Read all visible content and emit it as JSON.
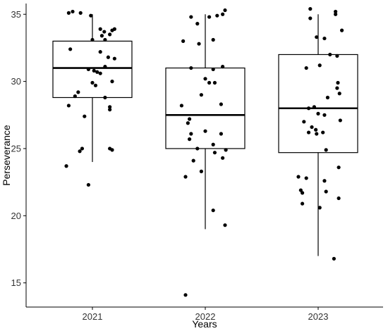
{
  "chart_data": {
    "type": "box",
    "title": "",
    "xlabel": "Years",
    "ylabel": "Perseverance",
    "categories": [
      "2021",
      "2022",
      "2023"
    ],
    "ylim": [
      13.2,
      35.8
    ],
    "yticks": [
      15,
      20,
      25,
      30,
      35
    ],
    "grid": false,
    "legend": "none",
    "colors": {
      "box_fill": "#ffffff",
      "box_stroke": "#000000",
      "points": "#000000"
    },
    "boxes": [
      {
        "category": "2021",
        "whisker_low": 24.0,
        "q1": 28.8,
        "median": 31.0,
        "q3": 33.0,
        "whisker_high": 35.0
      },
      {
        "category": "2022",
        "whisker_low": 19.0,
        "q1": 25.0,
        "median": 27.5,
        "q3": 31.0,
        "whisker_high": 35.0
      },
      {
        "category": "2023",
        "whisker_low": 17.0,
        "q1": 24.7,
        "median": 28.0,
        "q3": 32.0,
        "whisker_high": 35.0
      }
    ],
    "points": [
      {
        "category": "2021",
        "jitter": -0.3,
        "y": 35.1
      },
      {
        "category": "2021",
        "jitter": -0.25,
        "y": 35.2
      },
      {
        "category": "2021",
        "jitter": -0.15,
        "y": 35.1
      },
      {
        "category": "2021",
        "jitter": -0.02,
        "y": 34.9
      },
      {
        "category": "2021",
        "jitter": 0.1,
        "y": 33.9
      },
      {
        "category": "2021",
        "jitter": 0.15,
        "y": 33.7
      },
      {
        "category": "2021",
        "jitter": 0.25,
        "y": 33.8
      },
      {
        "category": "2021",
        "jitter": 0.28,
        "y": 33.9
      },
      {
        "category": "2021",
        "jitter": 0.22,
        "y": 33.5
      },
      {
        "category": "2021",
        "jitter": 0.12,
        "y": 33.4
      },
      {
        "category": "2021",
        "jitter": 0.0,
        "y": 33.1
      },
      {
        "category": "2021",
        "jitter": 0.16,
        "y": 33.1
      },
      {
        "category": "2021",
        "jitter": -0.28,
        "y": 32.4
      },
      {
        "category": "2021",
        "jitter": 0.1,
        "y": 32.2
      },
      {
        "category": "2021",
        "jitter": 0.2,
        "y": 31.8
      },
      {
        "category": "2021",
        "jitter": 0.28,
        "y": 31.7
      },
      {
        "category": "2021",
        "jitter": 0.16,
        "y": 31.1
      },
      {
        "category": "2021",
        "jitter": -0.05,
        "y": 30.9
      },
      {
        "category": "2021",
        "jitter": 0.02,
        "y": 30.8
      },
      {
        "category": "2021",
        "jitter": 0.06,
        "y": 30.7
      },
      {
        "category": "2021",
        "jitter": 0.1,
        "y": 30.6
      },
      {
        "category": "2021",
        "jitter": 0.25,
        "y": 30.0
      },
      {
        "category": "2021",
        "jitter": 0.04,
        "y": 29.7
      },
      {
        "category": "2021",
        "jitter": 0.0,
        "y": 29.9
      },
      {
        "category": "2021",
        "jitter": -0.18,
        "y": 29.2
      },
      {
        "category": "2021",
        "jitter": -0.22,
        "y": 28.9
      },
      {
        "category": "2021",
        "jitter": 0.16,
        "y": 28.8
      },
      {
        "category": "2021",
        "jitter": -0.3,
        "y": 28.2
      },
      {
        "category": "2021",
        "jitter": 0.22,
        "y": 28.1
      },
      {
        "category": "2021",
        "jitter": 0.22,
        "y": 27.9
      },
      {
        "category": "2021",
        "jitter": -0.1,
        "y": 27.4
      },
      {
        "category": "2021",
        "jitter": -0.13,
        "y": 25.0
      },
      {
        "category": "2021",
        "jitter": -0.16,
        "y": 24.8
      },
      {
        "category": "2021",
        "jitter": 0.22,
        "y": 25.0
      },
      {
        "category": "2021",
        "jitter": 0.25,
        "y": 24.9
      },
      {
        "category": "2021",
        "jitter": -0.33,
        "y": 23.7
      },
      {
        "category": "2021",
        "jitter": -0.05,
        "y": 22.3
      },
      {
        "category": "2022",
        "jitter": 0.25,
        "y": 35.3
      },
      {
        "category": "2022",
        "jitter": 0.22,
        "y": 35.0
      },
      {
        "category": "2022",
        "jitter": 0.15,
        "y": 34.9
      },
      {
        "category": "2022",
        "jitter": 0.05,
        "y": 34.8
      },
      {
        "category": "2022",
        "jitter": -0.18,
        "y": 34.8
      },
      {
        "category": "2022",
        "jitter": -0.1,
        "y": 34.3
      },
      {
        "category": "2022",
        "jitter": -0.28,
        "y": 33.0
      },
      {
        "category": "2022",
        "jitter": 0.1,
        "y": 33.1
      },
      {
        "category": "2022",
        "jitter": -0.08,
        "y": 32.8
      },
      {
        "category": "2022",
        "jitter": -0.18,
        "y": 31.0
      },
      {
        "category": "2022",
        "jitter": 0.22,
        "y": 31.1
      },
      {
        "category": "2022",
        "jitter": 0.1,
        "y": 30.9
      },
      {
        "category": "2022",
        "jitter": 0.0,
        "y": 30.2
      },
      {
        "category": "2022",
        "jitter": 0.05,
        "y": 29.9
      },
      {
        "category": "2022",
        "jitter": 0.12,
        "y": 29.9
      },
      {
        "category": "2022",
        "jitter": 0.2,
        "y": 28.3
      },
      {
        "category": "2022",
        "jitter": -0.05,
        "y": 29.0
      },
      {
        "category": "2022",
        "jitter": -0.3,
        "y": 28.2
      },
      {
        "category": "2022",
        "jitter": -0.2,
        "y": 27.2
      },
      {
        "category": "2022",
        "jitter": -0.22,
        "y": 26.9
      },
      {
        "category": "2022",
        "jitter": 0.0,
        "y": 26.3
      },
      {
        "category": "2022",
        "jitter": -0.18,
        "y": 26.1
      },
      {
        "category": "2022",
        "jitter": 0.2,
        "y": 26.1
      },
      {
        "category": "2022",
        "jitter": -0.2,
        "y": 25.7
      },
      {
        "category": "2022",
        "jitter": 0.1,
        "y": 25.3
      },
      {
        "category": "2022",
        "jitter": -0.1,
        "y": 25.0
      },
      {
        "category": "2022",
        "jitter": 0.12,
        "y": 24.7
      },
      {
        "category": "2022",
        "jitter": 0.26,
        "y": 24.9
      },
      {
        "category": "2022",
        "jitter": 0.22,
        "y": 24.3
      },
      {
        "category": "2022",
        "jitter": -0.15,
        "y": 24.1
      },
      {
        "category": "2022",
        "jitter": -0.05,
        "y": 23.3
      },
      {
        "category": "2022",
        "jitter": -0.25,
        "y": 22.9
      },
      {
        "category": "2022",
        "jitter": 0.1,
        "y": 20.4
      },
      {
        "category": "2022",
        "jitter": 0.25,
        "y": 19.3
      },
      {
        "category": "2022",
        "jitter": -0.25,
        "y": 14.1
      },
      {
        "category": "2023",
        "jitter": -0.1,
        "y": 35.4
      },
      {
        "category": "2023",
        "jitter": 0.22,
        "y": 35.2
      },
      {
        "category": "2023",
        "jitter": 0.22,
        "y": 35.0
      },
      {
        "category": "2023",
        "jitter": -0.1,
        "y": 34.7
      },
      {
        "category": "2023",
        "jitter": 0.3,
        "y": 33.8
      },
      {
        "category": "2023",
        "jitter": -0.02,
        "y": 33.3
      },
      {
        "category": "2023",
        "jitter": 0.08,
        "y": 33.2
      },
      {
        "category": "2023",
        "jitter": 0.15,
        "y": 32.0
      },
      {
        "category": "2023",
        "jitter": 0.24,
        "y": 31.9
      },
      {
        "category": "2023",
        "jitter": -0.15,
        "y": 31.0
      },
      {
        "category": "2023",
        "jitter": 0.02,
        "y": 31.2
      },
      {
        "category": "2023",
        "jitter": 0.25,
        "y": 29.9
      },
      {
        "category": "2023",
        "jitter": 0.24,
        "y": 29.5
      },
      {
        "category": "2023",
        "jitter": 0.27,
        "y": 29.1
      },
      {
        "category": "2023",
        "jitter": 0.12,
        "y": 28.8
      },
      {
        "category": "2023",
        "jitter": -0.05,
        "y": 28.1
      },
      {
        "category": "2023",
        "jitter": -0.12,
        "y": 28.0
      },
      {
        "category": "2023",
        "jitter": 0.0,
        "y": 27.6
      },
      {
        "category": "2023",
        "jitter": 0.08,
        "y": 27.5
      },
      {
        "category": "2023",
        "jitter": -0.18,
        "y": 27.0
      },
      {
        "category": "2023",
        "jitter": 0.28,
        "y": 27.1
      },
      {
        "category": "2023",
        "jitter": -0.08,
        "y": 26.6
      },
      {
        "category": "2023",
        "jitter": -0.03,
        "y": 26.4
      },
      {
        "category": "2023",
        "jitter": -0.12,
        "y": 26.2
      },
      {
        "category": "2023",
        "jitter": -0.02,
        "y": 26.1
      },
      {
        "category": "2023",
        "jitter": 0.06,
        "y": 26.2
      },
      {
        "category": "2023",
        "jitter": 0.1,
        "y": 24.9
      },
      {
        "category": "2023",
        "jitter": 0.26,
        "y": 23.6
      },
      {
        "category": "2023",
        "jitter": -0.25,
        "y": 22.9
      },
      {
        "category": "2023",
        "jitter": -0.15,
        "y": 22.8
      },
      {
        "category": "2023",
        "jitter": 0.08,
        "y": 22.6
      },
      {
        "category": "2023",
        "jitter": -0.22,
        "y": 21.9
      },
      {
        "category": "2023",
        "jitter": -0.2,
        "y": 21.7
      },
      {
        "category": "2023",
        "jitter": 0.1,
        "y": 21.8
      },
      {
        "category": "2023",
        "jitter": 0.26,
        "y": 21.3
      },
      {
        "category": "2023",
        "jitter": -0.2,
        "y": 20.9
      },
      {
        "category": "2023",
        "jitter": 0.02,
        "y": 20.6
      },
      {
        "category": "2023",
        "jitter": 0.2,
        "y": 16.8
      }
    ]
  }
}
